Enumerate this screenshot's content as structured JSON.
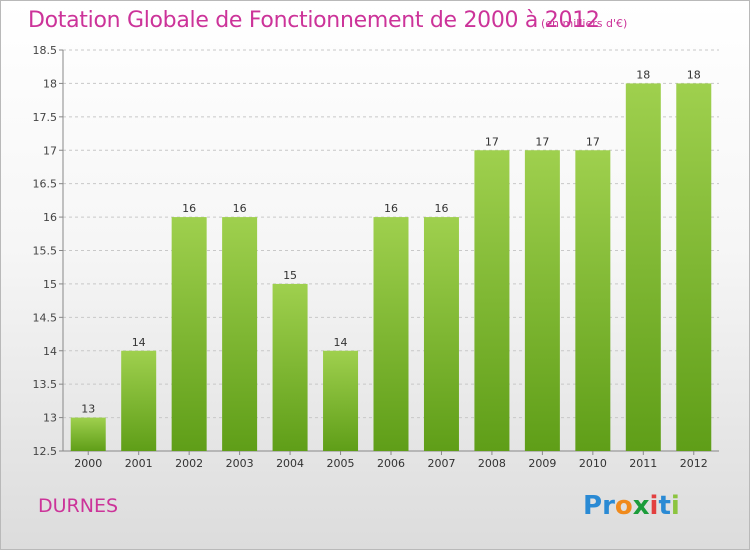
{
  "header": {
    "title": "Dotation Globale de Fonctionnement de 2000 à 2012",
    "unit": "(en milliers d'€)"
  },
  "footer": {
    "commune": "DURNES",
    "logo_text": "Proxiti",
    "logo_letters": [
      "P",
      "r",
      "o",
      "x",
      "i",
      "t",
      "i"
    ],
    "logo_colors": [
      "#2a8ad4",
      "#2a8ad4",
      "#f08a1c",
      "#1b9c3a",
      "#e23f3f",
      "#2a8ad4",
      "#8cc43f"
    ]
  },
  "colors": {
    "title": "#cc3399",
    "bar_light": "#9fd04e",
    "bar_dark": "#5f9e18",
    "grid": "#c8c8c8"
  },
  "chart_data": {
    "type": "bar",
    "categories": [
      "2000",
      "2001",
      "2002",
      "2003",
      "2004",
      "2005",
      "2006",
      "2007",
      "2008",
      "2009",
      "2010",
      "2011",
      "2012"
    ],
    "values": [
      13,
      14,
      16,
      16,
      15,
      14,
      16,
      16,
      17,
      17,
      17,
      18,
      18
    ],
    "value_labels": [
      "13",
      "14",
      "16",
      "16",
      "15",
      "14",
      "16",
      "16",
      "17",
      "17",
      "17",
      "18",
      "18"
    ],
    "ylim": [
      12.5,
      18.5
    ],
    "yticks": [
      12.5,
      13,
      13.5,
      14,
      14.5,
      15,
      15.5,
      16,
      16.5,
      17,
      17.5,
      18,
      18.5
    ],
    "ytick_labels": [
      "12.5",
      "13",
      "13.5",
      "14",
      "14.5",
      "15",
      "15.5",
      "16",
      "16.5",
      "17",
      "17.5",
      "18",
      "18.5"
    ],
    "grid": true,
    "legend": "none"
  }
}
